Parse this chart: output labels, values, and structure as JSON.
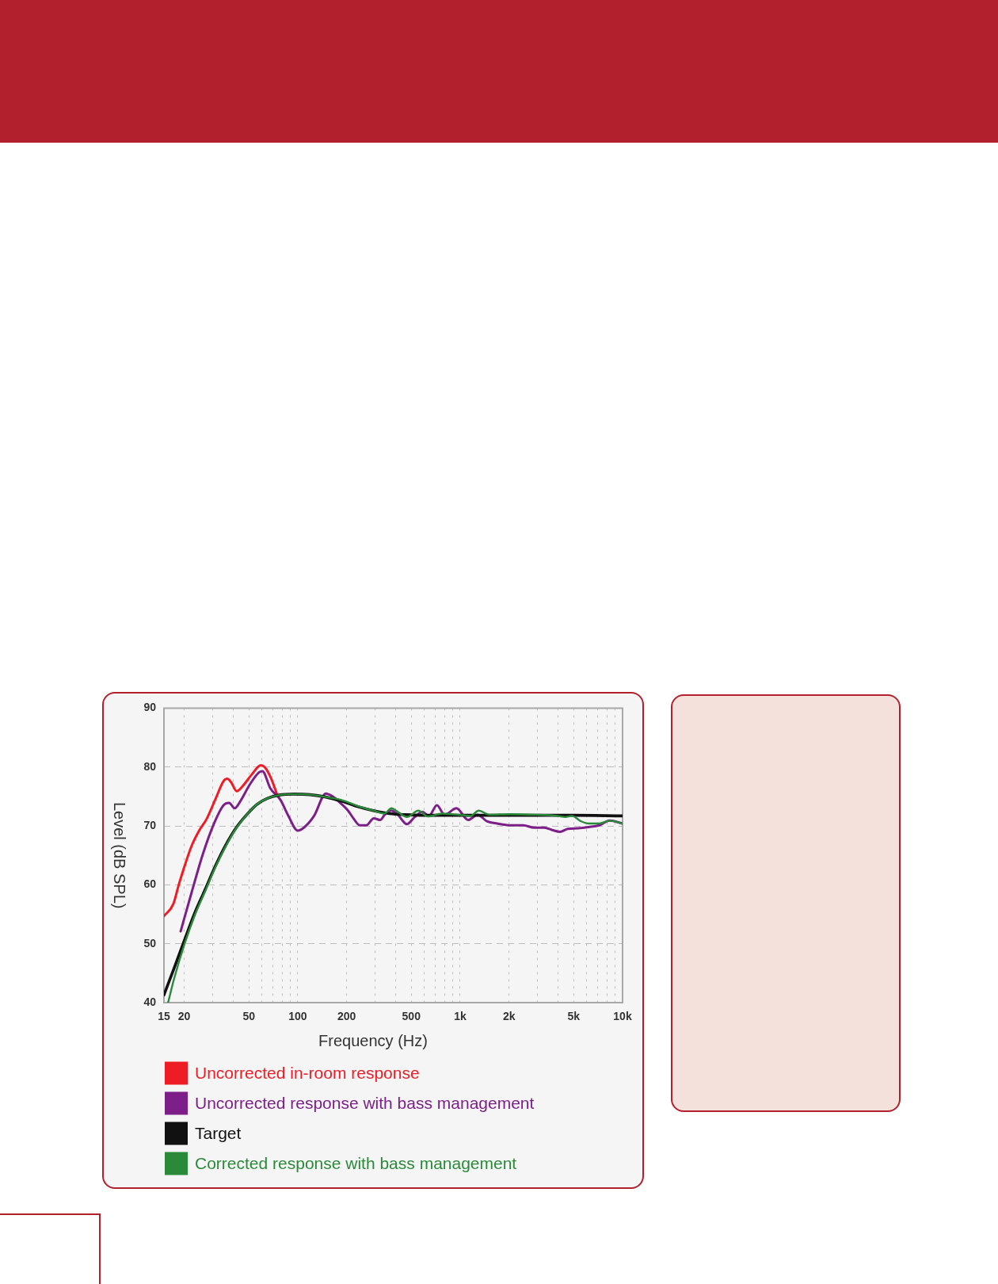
{
  "chart_data": {
    "type": "line",
    "xlabel": "Frequency (Hz)",
    "ylabel": "Level (dB SPL)",
    "log": "x",
    "grid": true,
    "legend": "bottom",
    "marker": "none",
    "xlim": [
      15,
      10000
    ],
    "ylim": [
      40,
      90
    ],
    "xticks": [
      15,
      20,
      {
        "value": 30,
        "label": null
      },
      {
        "value": 40,
        "label": null
      },
      50,
      {
        "value": 60,
        "label": null
      },
      {
        "value": 70,
        "label": null
      },
      {
        "value": 80,
        "label": null
      },
      {
        "value": 90,
        "label": null
      },
      100,
      200,
      {
        "value": 300,
        "label": null
      },
      {
        "value": 400,
        "label": null
      },
      500,
      {
        "value": 600,
        "label": null
      },
      {
        "value": 700,
        "label": null
      },
      {
        "value": 800,
        "label": null
      },
      {
        "value": 900,
        "label": null
      },
      {
        "value": 1000,
        "label": "1k"
      },
      {
        "value": 2000,
        "label": "2k"
      },
      {
        "value": 3000,
        "label": null
      },
      {
        "value": 4000,
        "label": null
      },
      {
        "value": 5000,
        "label": "5k"
      },
      {
        "value": 6000,
        "label": null
      },
      {
        "value": 7000,
        "label": null
      },
      {
        "value": 8000,
        "label": null
      },
      {
        "value": 9000,
        "label": null
      },
      {
        "value": 10000,
        "label": "10k"
      }
    ],
    "yticks": [
      40,
      50,
      60,
      70,
      80,
      90
    ],
    "series": [
      {
        "name": "Uncorrected in-room response",
        "color": "#ee1c25",
        "x": [
          15,
          17.1,
          18.5,
          20,
          22.2,
          24.7,
          27.5,
          31.3,
          34.9,
          36.8,
          38.9,
          42.1,
          45.6,
          52,
          59.3,
          62.5,
          67.7,
          75.2
        ],
        "values": [
          54.7,
          56.7,
          60,
          63,
          66.6,
          69.2,
          71.2,
          74.7,
          77.6,
          78,
          77.4,
          75.9,
          76.7,
          78.7,
          80.3,
          80,
          78.4,
          75.1
        ]
      },
      {
        "name": "Uncorrected response with bass management",
        "color": "#7d1f88",
        "x": [
          19,
          22.2,
          26.1,
          30.6,
          34.9,
          37.8,
          40.9,
          44.3,
          50.6,
          57.8,
          60.6,
          67.7,
          78.3,
          87.6,
          100,
          109,
          126,
          149,
          164,
          183,
          204,
          220,
          241,
          264,
          294,
          322,
          343,
          377,
          413,
          470,
          525,
          585,
          642,
          719,
          802,
          949,
          1120,
          1280,
          1460,
          1690,
          2040,
          2450,
          2850,
          3300,
          3690,
          4120,
          4600,
          5340,
          6190,
          7180,
          8330,
          10000
        ],
        "values": [
          52.1,
          58.7,
          65.3,
          70.5,
          73.5,
          73.9,
          73,
          74.2,
          77,
          79.1,
          79.3,
          76.4,
          74.4,
          71.7,
          69.2,
          69.7,
          71.7,
          75.5,
          75,
          73.9,
          72.6,
          71.3,
          70.1,
          70.1,
          71.3,
          71,
          71.9,
          72.6,
          71.9,
          70.3,
          71.5,
          72.4,
          71.7,
          73.5,
          71.9,
          73,
          71,
          71.9,
          70.8,
          70.4,
          70.1,
          70.1,
          69.7,
          69.7,
          69.3,
          69,
          69.5,
          69.6,
          69.8,
          70.1,
          70.9,
          70.4
        ]
      },
      {
        "name": "Target",
        "color": "#111111",
        "x": [
          15,
          17.3,
          20,
          23.2,
          26.9,
          31.1,
          36.1,
          41.8,
          48.5,
          56.3,
          65.3,
          75.7,
          94.7,
          119,
          149,
          186,
          233,
          292,
          366,
          460,
          600,
          1000,
          2000,
          5000,
          10000
        ],
        "values": [
          41.3,
          45.8,
          50.5,
          55.2,
          59.2,
          63.2,
          66.8,
          69.7,
          71.9,
          73.7,
          74.7,
          75.2,
          75.4,
          75.3,
          74.9,
          74.2,
          73.3,
          72.6,
          72.1,
          71.9,
          71.8,
          71.8,
          71.8,
          71.8,
          71.7
        ]
      },
      {
        "name": "Corrected response with bass management",
        "color": "#2a8a3a",
        "x": [
          15.9,
          17.3,
          20,
          23.2,
          26.9,
          31.1,
          36.1,
          41.8,
          48.5,
          56.3,
          65.3,
          75.7,
          94.7,
          119,
          149,
          186,
          233,
          292,
          343,
          377,
          413,
          470,
          553,
          630,
          775,
          967,
          1160,
          1300,
          1510,
          2040,
          2950,
          3970,
          4440,
          4870,
          5540,
          6190,
          7180,
          8330,
          10000
        ],
        "values": [
          40,
          44,
          49.8,
          54.8,
          58.9,
          63,
          66.6,
          69.6,
          71.9,
          73.7,
          74.7,
          75.2,
          75.4,
          75.3,
          74.9,
          74.4,
          73.4,
          72.6,
          72.1,
          73,
          72.4,
          71.5,
          72.6,
          71.6,
          72.1,
          71.9,
          71.7,
          72.6,
          71.9,
          72,
          71.9,
          71.7,
          71.5,
          71.7,
          70.8,
          70.4,
          70.4,
          70.9,
          70.4
        ]
      }
    ]
  }
}
